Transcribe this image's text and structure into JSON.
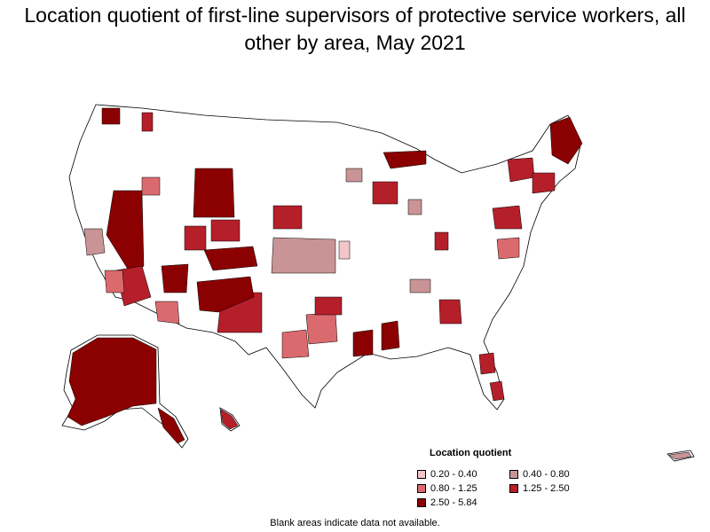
{
  "title": "Location quotient of first-line supervisors of protective service workers, all other by area, May 2021",
  "legend": {
    "title": "Location quotient",
    "items": [
      {
        "label": "0.20 - 0.40",
        "color": "#f4c6c9"
      },
      {
        "label": "0.40 - 0.80",
        "color": "#c99496"
      },
      {
        "label": "0.80 - 1.25",
        "color": "#db6a6f"
      },
      {
        "label": "1.25 - 2.50",
        "color": "#b51f2a"
      },
      {
        "label": "2.50 - 5.84",
        "color": "#8b0000"
      }
    ]
  },
  "footnote": "Blank areas indicate data not available.",
  "colors": {
    "background": "#ffffff",
    "blank_area": "#ffffff",
    "border": "#000000"
  }
}
